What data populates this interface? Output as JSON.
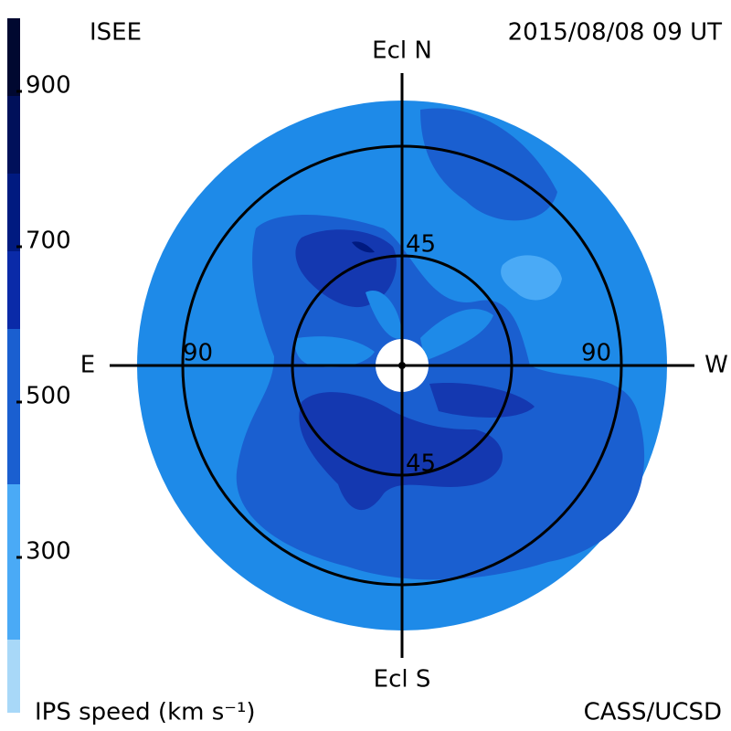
{
  "header": {
    "title": "ISEE",
    "timestamp": "2015/08/08 09 UT"
  },
  "map": {
    "north": "Ecl N",
    "south": "Ecl S",
    "east": "E",
    "west": "W",
    "ring_labels": [
      "90",
      "90",
      "45",
      "45"
    ]
  },
  "colorbar": {
    "title": "IPS speed (km s⁻¹)",
    "ticks": [
      "900",
      "700",
      "500",
      "300"
    ]
  },
  "footer": {
    "credit": "CASS/UCSD"
  }
}
